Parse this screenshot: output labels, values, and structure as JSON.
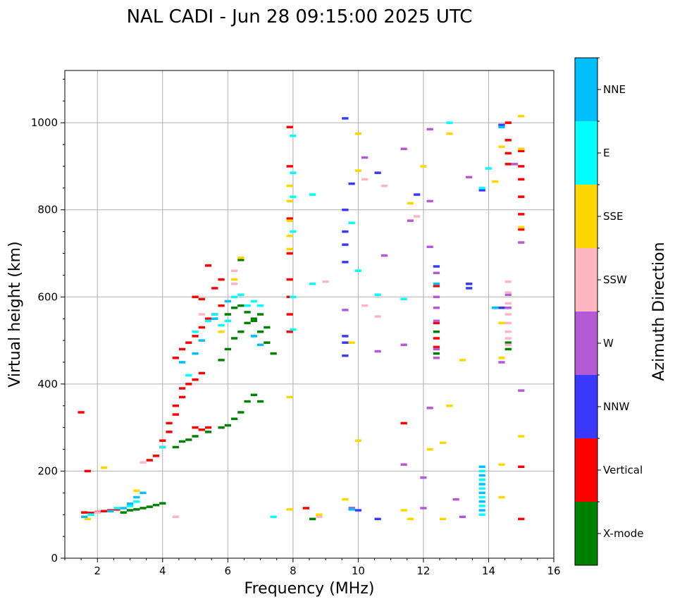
{
  "chart_data": {
    "type": "scatter",
    "title": "NAL CADI - Jun 28 09:15:00 2025 UTC",
    "xlabel": "Frequency (MHz)",
    "ylabel": "Virtual height (km)",
    "xlim": [
      1,
      16
    ],
    "ylim": [
      0,
      1120
    ],
    "xticks": [
      2,
      4,
      6,
      8,
      10,
      12,
      14,
      16
    ],
    "yticks": [
      0,
      200,
      400,
      600,
      800,
      1000
    ],
    "grid": true,
    "colorbar": {
      "label": "Azimuth Direction",
      "position": "right",
      "categories": [
        {
          "name": "X-mode",
          "color": "#008000"
        },
        {
          "name": "Vertical",
          "color": "#ff0000"
        },
        {
          "name": "NNW",
          "color": "#3a3aff"
        },
        {
          "name": "W",
          "color": "#b55ad6"
        },
        {
          "name": "SSW",
          "color": "#ffb6c1"
        },
        {
          "name": "SSE",
          "color": "#ffd700"
        },
        {
          "name": "E",
          "color": "#00ffff"
        },
        {
          "name": "NNE",
          "color": "#00bfff"
        }
      ]
    },
    "series": [
      {
        "name": "X-mode",
        "points": [
          [
            3.2,
            112
          ],
          [
            3.4,
            115
          ],
          [
            3.6,
            118
          ],
          [
            3.8,
            122
          ],
          [
            4.0,
            126
          ],
          [
            4.4,
            255
          ],
          [
            4.6,
            268
          ],
          [
            4.8,
            272
          ],
          [
            5.0,
            280
          ],
          [
            5.4,
            290
          ],
          [
            5.8,
            300
          ],
          [
            6.0,
            305
          ],
          [
            6.2,
            320
          ],
          [
            6.4,
            335
          ],
          [
            6.6,
            360
          ],
          [
            6.8,
            375
          ],
          [
            7.0,
            360
          ],
          [
            5.8,
            455
          ],
          [
            6.0,
            480
          ],
          [
            6.2,
            505
          ],
          [
            6.4,
            520
          ],
          [
            6.6,
            540
          ],
          [
            6.8,
            550
          ],
          [
            7.0,
            560
          ],
          [
            7.2,
            530
          ],
          [
            6.0,
            560
          ],
          [
            6.2,
            575
          ],
          [
            6.4,
            580
          ],
          [
            6.6,
            565
          ],
          [
            6.8,
            545
          ],
          [
            7.0,
            520
          ],
          [
            7.2,
            495
          ],
          [
            7.4,
            470
          ],
          [
            6.4,
            685
          ],
          [
            12.4,
            470
          ],
          [
            12.4,
            520
          ],
          [
            14.6,
            480
          ],
          [
            14.6,
            495
          ],
          [
            8.6,
            90
          ],
          [
            3.0,
            110
          ],
          [
            2.8,
            105
          ]
        ]
      },
      {
        "name": "Vertical",
        "points": [
          [
            1.6,
            105
          ],
          [
            1.8,
            104
          ],
          [
            2.0,
            106
          ],
          [
            2.2,
            108
          ],
          [
            2.4,
            110
          ],
          [
            2.6,
            112
          ],
          [
            3.6,
            225
          ],
          [
            3.8,
            235
          ],
          [
            4.0,
            255
          ],
          [
            4.0,
            270
          ],
          [
            4.2,
            290
          ],
          [
            4.2,
            310
          ],
          [
            4.4,
            330
          ],
          [
            4.4,
            350
          ],
          [
            4.6,
            370
          ],
          [
            4.6,
            390
          ],
          [
            4.8,
            400
          ],
          [
            5.0,
            410
          ],
          [
            5.2,
            425
          ],
          [
            5.0,
            300
          ],
          [
            5.2,
            295
          ],
          [
            5.4,
            300
          ],
          [
            4.4,
            460
          ],
          [
            4.6,
            480
          ],
          [
            4.8,
            495
          ],
          [
            5.0,
            510
          ],
          [
            5.2,
            530
          ],
          [
            5.4,
            550
          ],
          [
            5.6,
            560
          ],
          [
            5.8,
            580
          ],
          [
            5.2,
            595
          ],
          [
            5.0,
            600
          ],
          [
            5.6,
            620
          ],
          [
            5.8,
            640
          ],
          [
            5.4,
            672
          ],
          [
            7.9,
            520
          ],
          [
            7.9,
            560
          ],
          [
            7.9,
            600
          ],
          [
            7.9,
            640
          ],
          [
            7.9,
            700
          ],
          [
            7.9,
            780
          ],
          [
            7.9,
            900
          ],
          [
            7.9,
            990
          ],
          [
            8.4,
            115
          ],
          [
            11.4,
            310
          ],
          [
            12.4,
            485
          ],
          [
            12.4,
            505
          ],
          [
            12.4,
            540
          ],
          [
            12.4,
            625
          ],
          [
            14.6,
            905
          ],
          [
            14.6,
            930
          ],
          [
            14.6,
            960
          ],
          [
            14.6,
            1000
          ],
          [
            15.0,
            210
          ],
          [
            15.0,
            90
          ],
          [
            15.0,
            755
          ],
          [
            15.0,
            790
          ],
          [
            15.0,
            830
          ],
          [
            15.0,
            870
          ],
          [
            15.0,
            900
          ],
          [
            15.0,
            935
          ],
          [
            1.5,
            335
          ],
          [
            1.7,
            200
          ]
        ]
      },
      {
        "name": "NNW",
        "points": [
          [
            9.6,
            1010
          ],
          [
            9.6,
            800
          ],
          [
            9.6,
            750
          ],
          [
            9.6,
            720
          ],
          [
            9.6,
            680
          ],
          [
            9.6,
            510
          ],
          [
            9.6,
            495
          ],
          [
            9.6,
            465
          ],
          [
            9.8,
            860
          ],
          [
            9.8,
            115
          ],
          [
            10.0,
            110
          ],
          [
            10.6,
            885
          ],
          [
            10.6,
            90
          ],
          [
            11.8,
            835
          ],
          [
            12.4,
            670
          ],
          [
            13.4,
            630
          ],
          [
            13.4,
            620
          ],
          [
            13.8,
            845
          ],
          [
            14.4,
            995
          ],
          [
            14.4,
            575
          ]
        ]
      },
      {
        "name": "W",
        "points": [
          [
            9.6,
            570
          ],
          [
            9.8,
            115
          ],
          [
            10.2,
            920
          ],
          [
            10.6,
            475
          ],
          [
            10.8,
            695
          ],
          [
            11.4,
            940
          ],
          [
            11.4,
            490
          ],
          [
            11.4,
            215
          ],
          [
            11.6,
            775
          ],
          [
            12.0,
            185
          ],
          [
            12.0,
            115
          ],
          [
            12.2,
            985
          ],
          [
            12.2,
            820
          ],
          [
            12.2,
            715
          ],
          [
            12.2,
            345
          ],
          [
            12.4,
            655
          ],
          [
            12.4,
            600
          ],
          [
            12.4,
            575
          ],
          [
            12.4,
            545
          ],
          [
            12.4,
            480
          ],
          [
            12.4,
            460
          ],
          [
            13.0,
            135
          ],
          [
            13.2,
            95
          ],
          [
            13.4,
            875
          ],
          [
            14.4,
            450
          ],
          [
            14.8,
            905
          ],
          [
            15.0,
            385
          ],
          [
            15.0,
            725
          ],
          [
            14.6,
            575
          ],
          [
            14.6,
            605
          ]
        ]
      },
      {
        "name": "SSW",
        "points": [
          [
            2.0,
            105
          ],
          [
            4.4,
            95
          ],
          [
            5.2,
            560
          ],
          [
            6.2,
            660
          ],
          [
            6.2,
            630
          ],
          [
            9.0,
            635
          ],
          [
            10.2,
            870
          ],
          [
            10.2,
            580
          ],
          [
            10.6,
            555
          ],
          [
            10.8,
            855
          ],
          [
            11.8,
            785
          ],
          [
            14.6,
            610
          ],
          [
            14.6,
            585
          ],
          [
            14.6,
            560
          ],
          [
            14.6,
            540
          ],
          [
            14.6,
            520
          ],
          [
            14.6,
            505
          ],
          [
            14.6,
            490
          ],
          [
            14.6,
            635
          ],
          [
            3.4,
            220
          ],
          [
            8.8,
            95
          ]
        ]
      },
      {
        "name": "SSE",
        "points": [
          [
            2.2,
            208
          ],
          [
            1.7,
            90
          ],
          [
            3.2,
            155
          ],
          [
            5.8,
            520
          ],
          [
            6.4,
            690
          ],
          [
            6.2,
            640
          ],
          [
            7.9,
            855
          ],
          [
            7.9,
            820
          ],
          [
            7.9,
            775
          ],
          [
            7.9,
            740
          ],
          [
            7.9,
            710
          ],
          [
            7.9,
            370
          ],
          [
            7.9,
            112
          ],
          [
            8.8,
            100
          ],
          [
            9.6,
            135
          ],
          [
            10.0,
            270
          ],
          [
            10.0,
            975
          ],
          [
            10.0,
            890
          ],
          [
            11.4,
            110
          ],
          [
            11.6,
            90
          ],
          [
            11.6,
            815
          ],
          [
            12.0,
            900
          ],
          [
            12.2,
            250
          ],
          [
            12.6,
            265
          ],
          [
            12.6,
            90
          ],
          [
            12.8,
            350
          ],
          [
            12.8,
            975
          ],
          [
            13.2,
            455
          ],
          [
            14.2,
            865
          ],
          [
            14.4,
            945
          ],
          [
            14.4,
            215
          ],
          [
            14.4,
            540
          ],
          [
            14.4,
            460
          ],
          [
            14.4,
            140
          ],
          [
            15.0,
            280
          ],
          [
            15.0,
            760
          ],
          [
            15.0,
            940
          ],
          [
            15.0,
            1015
          ],
          [
            9.8,
            495
          ]
        ]
      },
      {
        "name": "E",
        "points": [
          [
            1.8,
            100
          ],
          [
            2.6,
            115
          ],
          [
            3.0,
            120
          ],
          [
            3.2,
            130
          ],
          [
            4.0,
            255
          ],
          [
            4.8,
            420
          ],
          [
            5.0,
            520
          ],
          [
            5.4,
            545
          ],
          [
            5.6,
            560
          ],
          [
            5.8,
            535
          ],
          [
            6.0,
            545
          ],
          [
            6.2,
            600
          ],
          [
            6.4,
            605
          ],
          [
            6.6,
            580
          ],
          [
            6.8,
            590
          ],
          [
            7.0,
            580
          ],
          [
            7.4,
            95
          ],
          [
            8.0,
            970
          ],
          [
            8.0,
            885
          ],
          [
            8.0,
            830
          ],
          [
            8.0,
            750
          ],
          [
            8.0,
            600
          ],
          [
            8.0,
            525
          ],
          [
            8.6,
            835
          ],
          [
            8.6,
            630
          ],
          [
            9.8,
            770
          ],
          [
            10.0,
            660
          ],
          [
            10.6,
            605
          ],
          [
            11.4,
            595
          ],
          [
            12.8,
            1000
          ],
          [
            13.8,
            850
          ],
          [
            14.0,
            895
          ],
          [
            13.8,
            200
          ],
          [
            13.8,
            180
          ],
          [
            13.8,
            160
          ],
          [
            13.8,
            140
          ],
          [
            13.8,
            120
          ],
          [
            13.8,
            100
          ]
        ]
      },
      {
        "name": "NNE",
        "points": [
          [
            1.6,
            95
          ],
          [
            2.4,
            108
          ],
          [
            2.8,
            115
          ],
          [
            3.0,
            125
          ],
          [
            3.2,
            140
          ],
          [
            3.4,
            150
          ],
          [
            4.6,
            450
          ],
          [
            5.0,
            470
          ],
          [
            5.2,
            500
          ],
          [
            5.6,
            550
          ],
          [
            6.0,
            590
          ],
          [
            6.8,
            510
          ],
          [
            7.0,
            490
          ],
          [
            12.4,
            630
          ],
          [
            13.8,
            210
          ],
          [
            13.8,
            190
          ],
          [
            13.8,
            170
          ],
          [
            13.8,
            150
          ],
          [
            13.8,
            130
          ],
          [
            13.8,
            110
          ],
          [
            14.2,
            575
          ],
          [
            14.4,
            990
          ],
          [
            9.8,
            112
          ]
        ]
      }
    ]
  }
}
